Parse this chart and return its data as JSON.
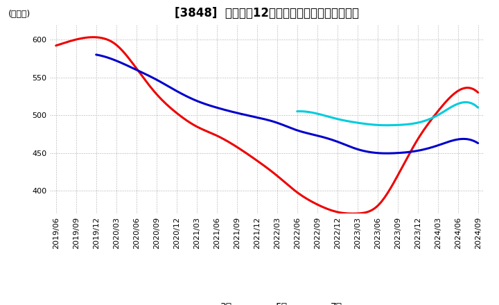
{
  "title": "[3848]  経常利益12か月移動合計の平均値の推移",
  "ylabel": "(百万円)",
  "ylim": [
    370,
    620
  ],
  "yticks": [
    400,
    450,
    500,
    550,
    600
  ],
  "background_color": "#ffffff",
  "grid_color": "#aaaaaa",
  "line_colors": {
    "3年": "#ee0000",
    "5年": "#0000cc",
    "7年": "#00ccdd",
    "10年": "#007700"
  },
  "x_labels": [
    "2019/06",
    "2019/09",
    "2019/12",
    "2020/03",
    "2020/06",
    "2020/09",
    "2020/12",
    "2021/03",
    "2021/06",
    "2021/09",
    "2021/12",
    "2022/03",
    "2022/06",
    "2022/09",
    "2022/12",
    "2023/03",
    "2023/06",
    "2023/09",
    "2023/12",
    "2024/03",
    "2024/06",
    "2024/09"
  ],
  "series_3y": [
    592,
    600,
    603,
    593,
    562,
    528,
    503,
    485,
    473,
    458,
    440,
    420,
    398,
    382,
    372,
    370,
    380,
    420,
    468,
    505,
    532,
    530
  ],
  "series_5y": [
    null,
    null,
    580,
    572,
    560,
    547,
    532,
    519,
    510,
    503,
    497,
    490,
    480,
    473,
    465,
    455,
    450,
    450,
    453,
    460,
    468,
    463
  ],
  "series_7y": [
    null,
    null,
    null,
    null,
    null,
    null,
    null,
    null,
    null,
    null,
    null,
    null,
    505,
    502,
    495,
    490,
    487,
    487,
    490,
    500,
    515,
    510
  ],
  "series_10y": [
    null,
    null,
    null,
    null,
    null,
    null,
    null,
    null,
    null,
    null,
    null,
    null,
    null,
    null,
    null,
    null,
    null,
    null,
    null,
    null,
    null,
    null
  ],
  "title_fontsize": 12,
  "label_fontsize": 9,
  "tick_fontsize": 8,
  "legend_fontsize": 10,
  "line_width": 2.2
}
